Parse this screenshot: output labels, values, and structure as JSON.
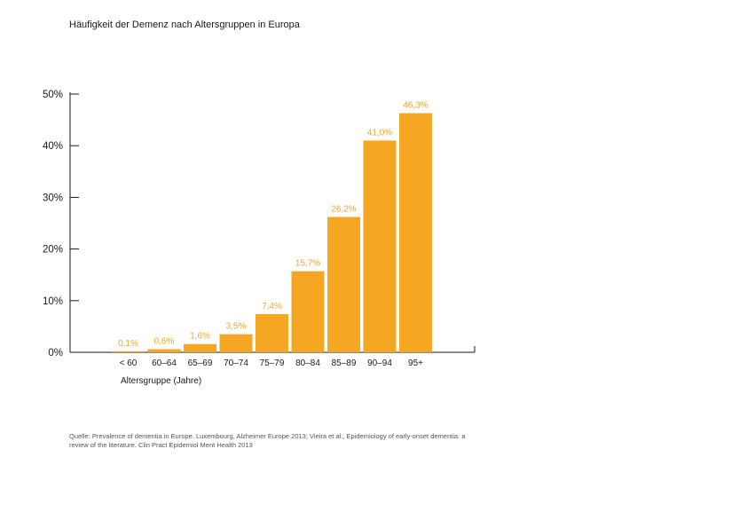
{
  "chart_data": {
    "type": "bar",
    "title": "Häufigkeit der Demenz nach Altersgruppen in Europa",
    "xlabel": "Altersgruppe (Jahre)",
    "ylabel": "",
    "categories": [
      "< 60",
      "60–64",
      "65–69",
      "70–74",
      "75–79",
      "80–84",
      "85–89",
      "90–94",
      "95+"
    ],
    "values": [
      0.1,
      0.6,
      1.6,
      3.5,
      7.4,
      15.7,
      26.2,
      41.0,
      46.3
    ],
    "value_labels": [
      "0,1%",
      "0,6%",
      "1,6%",
      "3,5%",
      "7,4%",
      "15,7%",
      "26,2%",
      "41,0%",
      "46,3%"
    ],
    "ylim": [
      0,
      50
    ],
    "yticks": [
      0,
      10,
      20,
      30,
      40,
      50
    ],
    "ytick_labels": [
      "0%",
      "10%",
      "20%",
      "30%",
      "40%",
      "50%"
    ],
    "grid": false,
    "legend": "none",
    "bar_color": "#f5a623",
    "label_color": "#f5a623"
  },
  "source": "Quelle: Prevalence of dementia in Europe. Luxembourg, Alzheimer Europe 2013; Vieira et al., Epidemiology of early-onset dementia: a review of the literature. Clin Pract Epidemiol Ment Health 2013"
}
